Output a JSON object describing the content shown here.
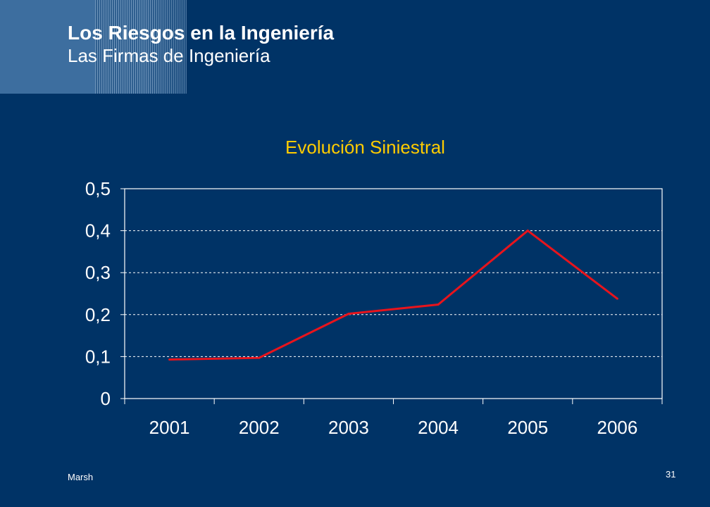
{
  "slide": {
    "title": "Los Riesgos en la Ingeniería",
    "subtitle": "Las Firmas de Ingeniería"
  },
  "footer": {
    "company": "Marsh",
    "page_number": "31"
  },
  "colors": {
    "background": "#003366",
    "chart_title": "#ffcc00",
    "line": "#e8141c",
    "text": "#ffffff"
  },
  "chart_data": {
    "type": "line",
    "title": "Evolución Siniestral",
    "xlabel": "",
    "ylabel": "",
    "categories": [
      "2001",
      "2002",
      "2003",
      "2004",
      "2005",
      "2006"
    ],
    "series": [
      {
        "values": [
          0.093,
          0.097,
          0.202,
          0.224,
          0.4,
          0.238
        ]
      }
    ],
    "ylim": [
      0,
      0.5
    ],
    "yticks": [
      0,
      0.1,
      0.2,
      0.3,
      0.4,
      0.5
    ],
    "ytick_labels": [
      "0",
      "0,1",
      "0,2",
      "0,3",
      "0,4",
      "0,5"
    ],
    "grid": true,
    "legend": "none"
  }
}
